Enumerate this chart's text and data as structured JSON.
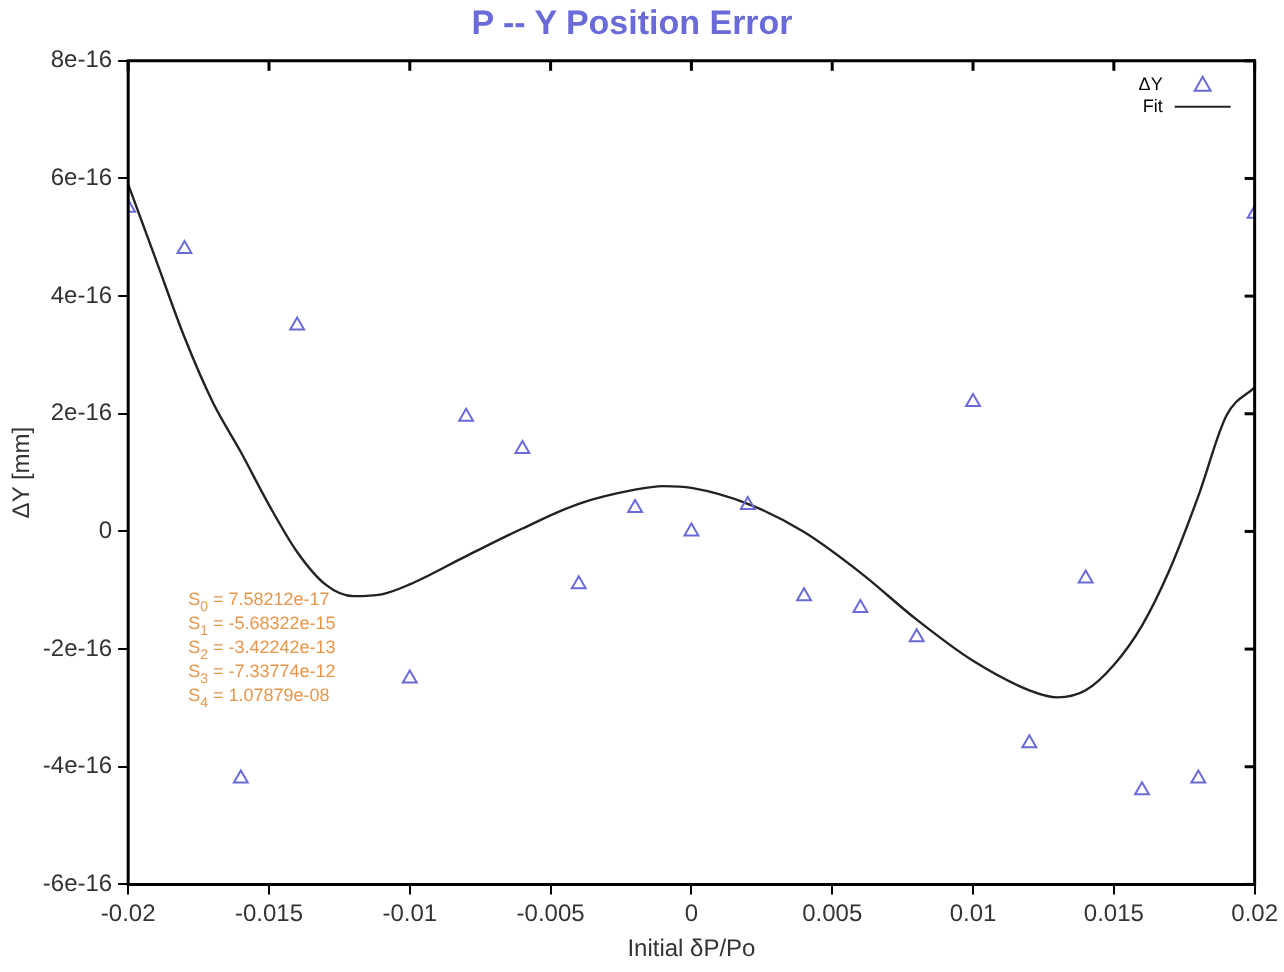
{
  "chart_data": {
    "type": "scatter",
    "title": "P -- Y Position Error",
    "xlabel": "Initial δP/Po",
    "ylabel": "ΔY [mm]",
    "xlim": [
      -0.02,
      0.02
    ],
    "xticks": [
      -0.02,
      -0.015,
      -0.01,
      -0.005,
      0,
      0.005,
      0.01,
      0.015,
      0.02
    ],
    "ylim": [
      -6e-16,
      8e-16
    ],
    "yticks": [
      -6e-16,
      -4e-16,
      -2e-16,
      0,
      2e-16,
      4e-16,
      6e-16,
      8e-16
    ],
    "grid": false,
    "legend": "top right",
    "marker": "triangle",
    "series": [
      {
        "name": "ΔY",
        "color": "#6a6ad8",
        "x": [
          -0.02,
          -0.018,
          -0.016,
          -0.014,
          -0.01,
          -0.008,
          -0.006,
          -0.004,
          -0.002,
          0,
          0.002,
          0.004,
          0.006,
          0.008,
          0.01,
          0.012,
          0.014,
          0.016,
          0.018,
          0.02
        ],
        "values": [
          5.5e-16,
          4.8e-16,
          -4.2e-16,
          3.5e-16,
          -2.5e-16,
          1.95e-16,
          1.4e-16,
          -9e-17,
          4e-17,
          0,
          4.5e-17,
          -1.1e-16,
          -1.3e-16,
          -1.8e-16,
          2.2e-16,
          -3.6e-16,
          -8e-17,
          -4.4e-16,
          -4.2e-16,
          5.4e-16
        ]
      },
      {
        "name": "Fit",
        "type": "line",
        "color": "#222222",
        "marker": "none",
        "line_style": "solid",
        "x": [
          -0.02,
          -0.019,
          -0.018,
          -0.017,
          -0.016,
          -0.015,
          -0.014,
          -0.013,
          -0.012,
          -0.011,
          -0.01,
          -0.008,
          -0.006,
          -0.004,
          -0.002,
          -0.001,
          0,
          0.002,
          0.004,
          0.006,
          0.008,
          0.01,
          0.012,
          0.013,
          0.014,
          0.015,
          0.016,
          0.017,
          0.018,
          0.019,
          0.02
        ],
        "values": [
          5.9e-16,
          4.6e-16,
          3.3e-16,
          2.2e-16,
          1.35e-16,
          4.5e-17,
          -3.5e-17,
          -9e-17,
          -1.1e-16,
          -1.07e-16,
          -9e-17,
          -4.2e-17,
          5e-18,
          4.7e-17,
          7.1e-17,
          7.7e-17,
          7.4e-17,
          4.7e-17,
          -1e-18,
          -7e-17,
          -1.5e-16,
          -2.2e-16,
          -2.7e-16,
          -2.82e-16,
          -2.7e-16,
          -2.27e-16,
          -1.6e-16,
          -6.3e-17,
          6e-17,
          1.97e-16,
          2.45e-16
        ]
      }
    ],
    "annotations": [
      "S$_{0}$ = 7.58212e-17",
      "S$_{1}$ = -5.68322e-15",
      "S$_{2}$ = -3.42242e-13",
      "S$_{3}$ = -7.33774e-12",
      "S$_{4}$ = 1.07879e-08"
    ]
  }
}
